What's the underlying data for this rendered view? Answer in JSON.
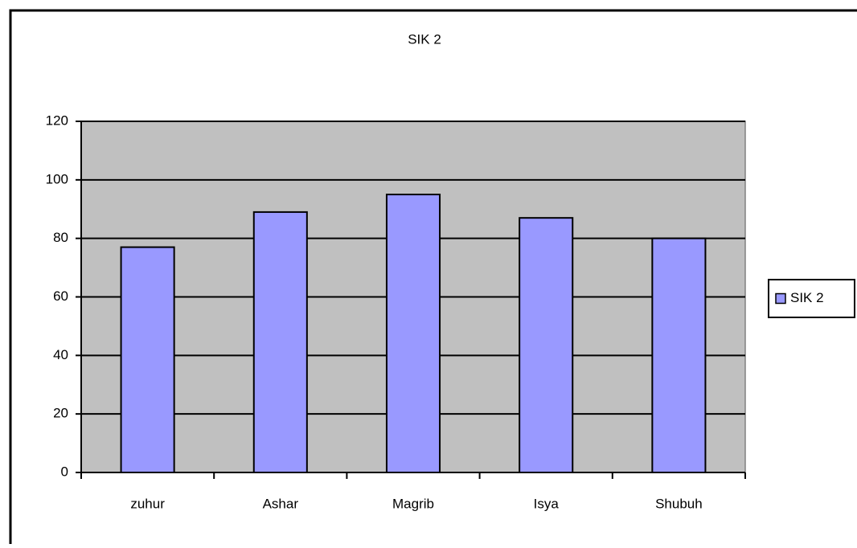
{
  "chart_data": {
    "type": "bar",
    "title": "SIK 2",
    "categories": [
      "zuhur",
      "Ashar",
      "Magrib",
      "Isya",
      "Shubuh"
    ],
    "series": [
      {
        "name": "SIK 2",
        "color": "#9999ff",
        "values": [
          77,
          89,
          95,
          87,
          80
        ]
      }
    ],
    "ylim": [
      0,
      120
    ],
    "yticks": [
      0,
      20,
      40,
      60,
      80,
      100,
      120
    ],
    "grid": true,
    "legend": "right"
  }
}
